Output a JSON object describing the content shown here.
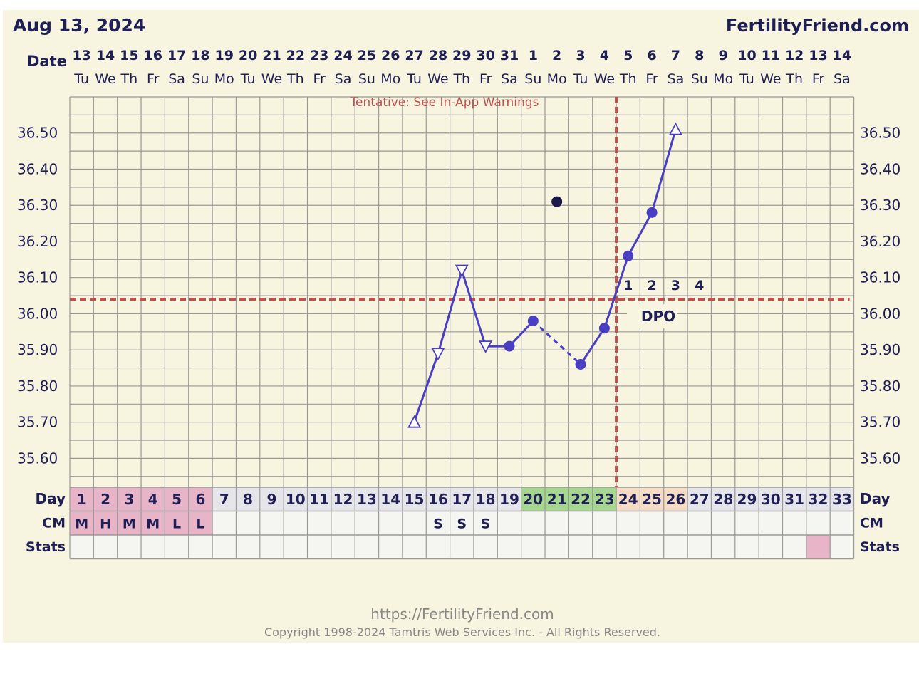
{
  "header": {
    "date_title": "Aug 13, 2024",
    "site_title": "FertilityFriend.com",
    "date_row_label": "Date"
  },
  "chart_data": {
    "type": "line",
    "title": "Aug 13, 2024",
    "tentative_note": "Tentative: See In-App Warnings",
    "date_numbers": [
      "13",
      "14",
      "15",
      "16",
      "17",
      "18",
      "19",
      "20",
      "21",
      "22",
      "23",
      "24",
      "25",
      "26",
      "27",
      "28",
      "29",
      "30",
      "31",
      "1",
      "2",
      "3",
      "4",
      "5",
      "6",
      "7",
      "8",
      "9",
      "10",
      "11",
      "12",
      "13",
      "14"
    ],
    "weekdays": [
      "Tu",
      "We",
      "Th",
      "Fr",
      "Sa",
      "Su",
      "Mo",
      "Tu",
      "We",
      "Th",
      "Fr",
      "Sa",
      "Su",
      "Mo",
      "Tu",
      "We",
      "Th",
      "Fr",
      "Sa",
      "Su",
      "Mo",
      "Tu",
      "We",
      "Th",
      "Fr",
      "Sa",
      "Su",
      "Mo",
      "Tu",
      "We",
      "Th",
      "Fr",
      "Sa"
    ],
    "cycle_days": [
      "1",
      "2",
      "3",
      "4",
      "5",
      "6",
      "7",
      "8",
      "9",
      "10",
      "11",
      "12",
      "13",
      "14",
      "15",
      "16",
      "17",
      "18",
      "19",
      "20",
      "21",
      "22",
      "23",
      "24",
      "25",
      "26",
      "27",
      "28",
      "29",
      "30",
      "31",
      "32",
      "33"
    ],
    "y_ticks": [
      "36.50",
      "36.40",
      "36.30",
      "36.20",
      "36.10",
      "36.00",
      "35.90",
      "35.80",
      "35.70",
      "35.60"
    ],
    "ylim": [
      35.52,
      36.6
    ],
    "series": [
      {
        "points": [
          {
            "day": 15,
            "temp": 35.7,
            "marker": "triangle-up-open"
          },
          {
            "day": 16,
            "temp": 35.89,
            "marker": "triangle-down-open"
          },
          {
            "day": 17,
            "temp": 36.12,
            "marker": "triangle-down-open"
          },
          {
            "day": 18,
            "temp": 35.91,
            "marker": "triangle-down-open"
          },
          {
            "day": 19,
            "temp": 35.91,
            "marker": "dot"
          },
          {
            "day": 20,
            "temp": 35.98,
            "marker": "dot"
          },
          {
            "day": 22,
            "temp": 35.86,
            "marker": "dot"
          },
          {
            "day": 23,
            "temp": 35.96,
            "marker": "dot"
          },
          {
            "day": 24,
            "temp": 36.16,
            "marker": "dot"
          },
          {
            "day": 25,
            "temp": 36.28,
            "marker": "dot"
          },
          {
            "day": 26,
            "temp": 36.51,
            "marker": "triangle-up-open"
          }
        ],
        "dashed_segments": [
          [
            20,
            22
          ]
        ]
      }
    ],
    "discarded_points": [
      {
        "day": 21,
        "temp": 36.31
      }
    ],
    "coverline_temp": 36.04,
    "ovulation_day": 23,
    "dpo_numbers": [
      "1",
      "2",
      "3",
      "4"
    ],
    "dpo_label": "DPO",
    "row_labels": {
      "day": "Day",
      "cm": "CM",
      "stats": "Stats"
    },
    "period_days": [
      1,
      6
    ],
    "fertile_days": [
      20,
      23
    ],
    "luteal_days": [
      24,
      26
    ],
    "stats_highlight_day": 32,
    "cm_entries": [
      {
        "day": 1,
        "value": "M"
      },
      {
        "day": 2,
        "value": "H"
      },
      {
        "day": 3,
        "value": "M"
      },
      {
        "day": 4,
        "value": "M"
      },
      {
        "day": 5,
        "value": "L"
      },
      {
        "day": 6,
        "value": "L"
      },
      {
        "day": 16,
        "value": "S"
      },
      {
        "day": 17,
        "value": "S"
      },
      {
        "day": 18,
        "value": "S"
      }
    ]
  },
  "colors": {
    "background": "#f7f4df",
    "text_navy": "#1f1f55",
    "line": "#4a3fc2",
    "grid": "#999999",
    "dashed_red": "#c0504d",
    "period_pink": "#e8b4c8",
    "fertile_green": "#a6d78f",
    "luteal_peach": "#f7dcc5",
    "cell_light": "#f5f5f2",
    "footer_gray": "#888888"
  },
  "footer": {
    "url": "https://FertilityFriend.com",
    "copyright": "Copyright 1998-2024 Tamtris Web Services Inc. - All Rights Reserved."
  }
}
